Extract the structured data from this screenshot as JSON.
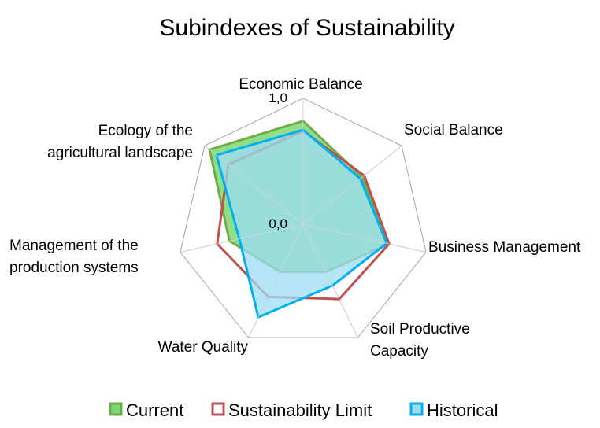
{
  "chart_data": {
    "type": "radar",
    "title": "Subindexes of Sustainability",
    "axes": [
      [
        "Economic Balance"
      ],
      [
        "Social Balance"
      ],
      [
        "Business Management"
      ],
      [
        "Soil Productive",
        "Capacity"
      ],
      [
        "Water Quality"
      ],
      [
        "Management of the",
        "production systems"
      ],
      [
        "Ecology of the",
        "agricultural landscape"
      ]
    ],
    "range": [
      0,
      1
    ],
    "tick_labels": [
      "0,0",
      "1,0"
    ],
    "grid": true,
    "series": [
      {
        "name": "Current",
        "values": [
          0.82,
          0.6,
          0.7,
          0.42,
          0.42,
          0.6,
          0.95
        ],
        "color": "#70ad47",
        "fill": "#7cd876",
        "fill_opacity": 0.85
      },
      {
        "name": "Sustainability Limit",
        "values": [
          0.74,
          0.62,
          0.7,
          0.66,
          0.64,
          0.7,
          0.76
        ],
        "color": "#c0504d",
        "fill": "none",
        "fill_opacity": 0
      },
      {
        "name": "Historical",
        "values": [
          0.75,
          0.58,
          0.68,
          0.54,
          0.82,
          0.52,
          0.88
        ],
        "color": "#00b0f0",
        "fill": "#9edcf4",
        "fill_opacity": 0.75
      }
    ],
    "legend_position": "bottom",
    "legend": [
      "Current",
      "Sustainability Limit",
      "Historical"
    ]
  }
}
